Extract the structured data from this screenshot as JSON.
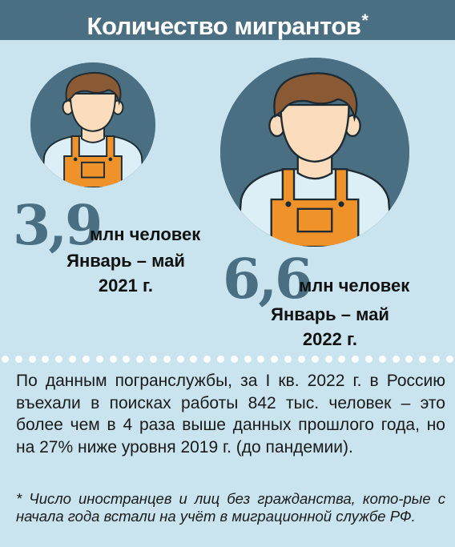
{
  "header": {
    "title": "Количество мигрантов",
    "asterisk": "*"
  },
  "colors": {
    "background": "#c9e4ef",
    "accent": "#4a6f82",
    "overalls": "#f0922a",
    "skin": "#fbdcbc",
    "hair": "#8a5a34"
  },
  "stats": [
    {
      "number": "3,9",
      "unit": "млн человек",
      "period_line1": "Январь – май",
      "period_line2": "2021 г.",
      "icon": "worker-icon"
    },
    {
      "number": "6,6",
      "unit": "млн человек",
      "period_line1": "Январь – май",
      "period_line2": "2022 г.",
      "icon": "worker-icon"
    }
  ],
  "body_text": "По данным погранслужбы, за I кв. 2022 г. в Россию въехали в поисках работы 842 тыс. человек – это более чем в 4 раза выше данных прошлого года, но на 27% ниже уровня 2019 г. (до пандемии).",
  "footnote": "* Число иностранцев и лиц без гражданства, кото-рые с начала года встали на учёт в миграционной службе РФ."
}
